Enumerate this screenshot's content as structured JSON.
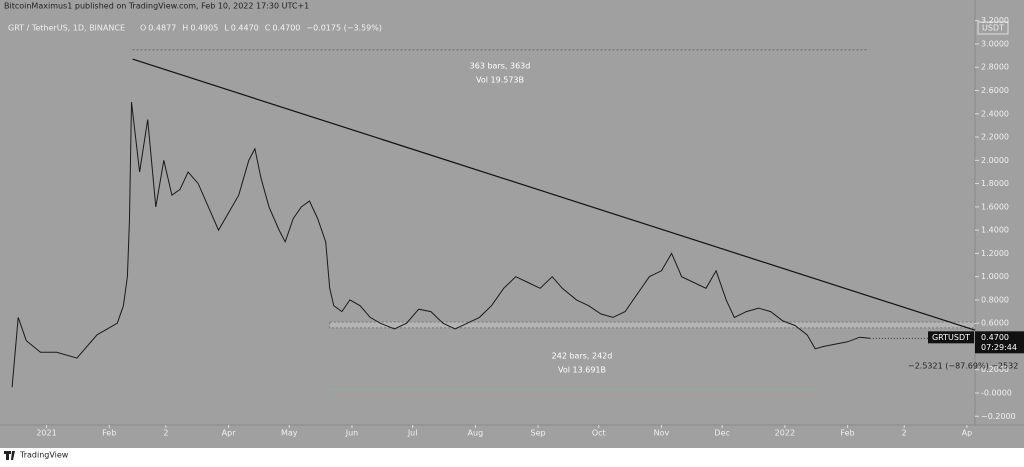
{
  "header": {
    "publisher": "BitcoinMaximus1 published on TradingView.com, Feb 10, 2022 17:30 UTC+1",
    "footer": "TradingView"
  },
  "chart_data": {
    "type": "line",
    "title": "GRT / TetherUS, 1D, BINANCE",
    "ohlc": [
      "O",
      "0.4877",
      "H",
      "0.4905",
      "L",
      "0.4470",
      "C",
      "0.4700",
      "−0.0175 (−3.59%)"
    ],
    "y_unit": "USDT",
    "series": [
      {
        "name": "GRTUSDT",
        "color": "#1a1a1a",
        "x": [
          -17,
          -14,
          -10,
          -3,
          5,
          15,
          25,
          35,
          38,
          40,
          41,
          42,
          46,
          50,
          54,
          58,
          62,
          66,
          70,
          75,
          80,
          85,
          90,
          95,
          100,
          103,
          106,
          110,
          115,
          118,
          122,
          126,
          130,
          134,
          138,
          140,
          142,
          146,
          150,
          155,
          160,
          165,
          172,
          178,
          184,
          190,
          196,
          202,
          208,
          214,
          220,
          226,
          232,
          238,
          244,
          250,
          255,
          262,
          268,
          274,
          280,
          286,
          292,
          298,
          304,
          309,
          314,
          320,
          326,
          331,
          336,
          340,
          346,
          352,
          358,
          364,
          370,
          376,
          380,
          384,
          390,
          396,
          402,
          407
        ],
        "values": [
          0.05,
          0.65,
          0.45,
          0.35,
          0.35,
          0.3,
          0.5,
          0.6,
          0.75,
          1.0,
          1.5,
          2.5,
          1.9,
          2.35,
          1.6,
          2.0,
          1.7,
          1.75,
          1.9,
          1.8,
          1.6,
          1.4,
          1.55,
          1.7,
          2.0,
          2.1,
          1.85,
          1.6,
          1.4,
          1.3,
          1.5,
          1.6,
          1.65,
          1.5,
          1.3,
          0.9,
          0.75,
          0.7,
          0.8,
          0.75,
          0.65,
          0.6,
          0.55,
          0.6,
          0.72,
          0.7,
          0.6,
          0.55,
          0.6,
          0.65,
          0.75,
          0.9,
          1.0,
          0.95,
          0.9,
          1.0,
          0.9,
          0.8,
          0.75,
          0.68,
          0.65,
          0.7,
          0.85,
          1.0,
          1.05,
          1.2,
          1.0,
          0.95,
          0.9,
          1.05,
          0.8,
          0.65,
          0.7,
          0.73,
          0.7,
          0.62,
          0.58,
          0.5,
          0.38,
          0.4,
          0.42,
          0.44,
          0.48,
          0.47
        ]
      }
    ],
    "last_price": {
      "value": 0.47,
      "label": "0.4700"
    },
    "countdown": "07:29:44",
    "trendline": {
      "x": [
        42.5,
        459
      ],
      "y": [
        2.87,
        0.54
      ]
    },
    "support_band": [
      0.56,
      0.61
    ],
    "measure_top": {
      "x": [
        42.5,
        406
      ],
      "y": 2.95,
      "bars": "363 bars, 363d",
      "vol": "Vol 19.573B"
    },
    "measure_bottom": {
      "x": [
        140,
        382
      ],
      "y": 0.03,
      "bars": "242 bars, 242d",
      "vol": "Vol 13.691B",
      "change": "−2.5321 (−87.69%) −2532"
    },
    "xlim": [
      -23,
      459
    ],
    "xticks": [
      {
        "value": 0,
        "label": "2021"
      },
      {
        "value": 31,
        "label": "Feb"
      },
      {
        "value": 59,
        "label": "2"
      },
      {
        "value": 90,
        "label": "Apr"
      },
      {
        "value": 120,
        "label": "May"
      },
      {
        "value": 151,
        "label": "Jun"
      },
      {
        "value": 181,
        "label": "Jul"
      },
      {
        "value": 212,
        "label": "Aug"
      },
      {
        "value": 243,
        "label": "Sep"
      },
      {
        "value": 273,
        "label": "Oct"
      },
      {
        "value": 304,
        "label": "Nov"
      },
      {
        "value": 334,
        "label": "Dec"
      },
      {
        "value": 365,
        "label": "2022"
      },
      {
        "value": 396,
        "label": "Feb"
      },
      {
        "value": 424,
        "label": "2"
      },
      {
        "value": 455,
        "label": "Ap"
      }
    ],
    "ylim": [
      -0.275,
      3.335
    ],
    "yticks": [
      {
        "value": -0.2,
        "label": "−0.2000"
      },
      {
        "value": 0,
        "label": "-0.0000"
      },
      {
        "value": 0.2,
        "label": "0.2000"
      },
      {
        "value": 0.4,
        "label": "0.4000"
      },
      {
        "value": 0.6,
        "label": "0.6000"
      },
      {
        "value": 0.8,
        "label": "0.8000"
      },
      {
        "value": 1.0,
        "label": "1.0000"
      },
      {
        "value": 1.2,
        "label": "1.2000"
      },
      {
        "value": 1.4,
        "label": "1.4000"
      },
      {
        "value": 1.6,
        "label": "1.6000"
      },
      {
        "value": 1.8,
        "label": "1.8000"
      },
      {
        "value": 2.0,
        "label": "2.0000"
      },
      {
        "value": 2.2,
        "label": "2.2000"
      },
      {
        "value": 2.4,
        "label": "2.4000"
      },
      {
        "value": 2.6,
        "label": "2.6000"
      },
      {
        "value": 2.8,
        "label": "2.8000"
      },
      {
        "value": 3.0,
        "label": "3.0000"
      },
      {
        "value": 3.2,
        "label": "3.2000"
      }
    ]
  }
}
